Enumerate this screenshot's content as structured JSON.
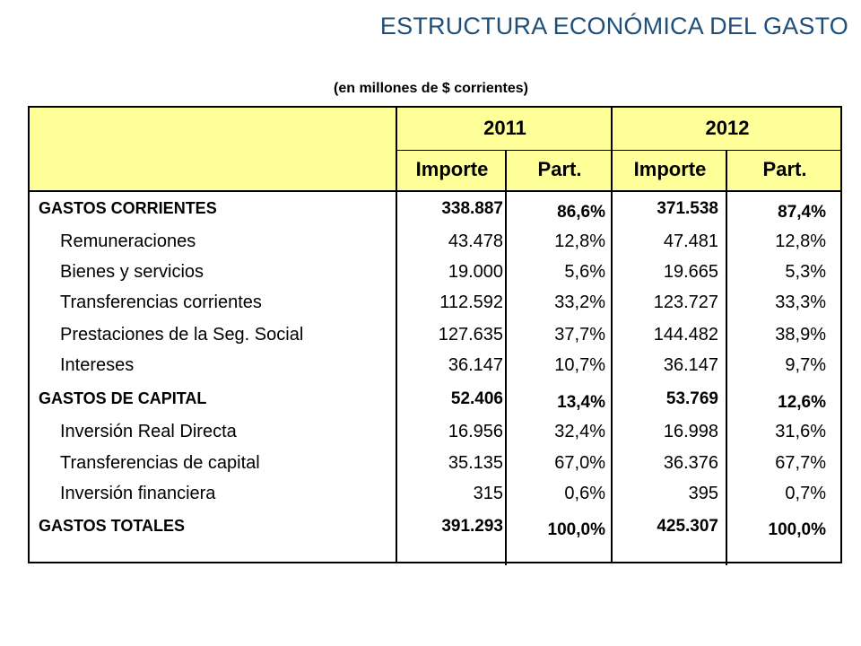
{
  "title": "ESTRUCTURA ECONÓMICA DEL GASTO",
  "subtitle": "(en millones de $ corrientes)",
  "years": [
    "2011",
    "2012"
  ],
  "subheaders": [
    "Importe",
    "Part.",
    "Importe",
    "Part."
  ],
  "rows": [
    {
      "label": "GASTOS CORRIENTES",
      "bold": true,
      "v": [
        "338.887",
        "86,6%",
        "371.538",
        "87,4%"
      ]
    },
    {
      "label": "Remuneraciones",
      "bold": false,
      "v": [
        "43.478",
        "12,8%",
        "47.481",
        "12,8%"
      ]
    },
    {
      "label": "Bienes y servicios",
      "bold": false,
      "v": [
        "19.000",
        "5,6%",
        "19.665",
        "5,3%"
      ]
    },
    {
      "label": "Transferencias corrientes",
      "bold": false,
      "v": [
        "112.592",
        "33,2%",
        "123.727",
        "33,3%"
      ]
    },
    {
      "label": "Prestaciones de la Seg. Social",
      "bold": false,
      "v": [
        "127.635",
        "37,7%",
        "144.482",
        "38,9%"
      ]
    },
    {
      "label": "Intereses",
      "bold": false,
      "v": [
        "36.147",
        "10,7%",
        "36.147",
        "9,7%"
      ]
    },
    {
      "label": "GASTOS DE CAPITAL",
      "bold": true,
      "v": [
        "52.406",
        "13,4%",
        "53.769",
        "12,6%"
      ]
    },
    {
      "label": "Inversión Real Directa",
      "bold": false,
      "v": [
        "16.956",
        "32,4%",
        "16.998",
        "31,6%"
      ]
    },
    {
      "label": "Transferencias de capital",
      "bold": false,
      "v": [
        "35.135",
        "67,0%",
        "36.376",
        "67,7%"
      ]
    },
    {
      "label": "Inversión financiera",
      "bold": false,
      "v": [
        "315",
        "0,6%",
        "395",
        "0,7%"
      ]
    },
    {
      "label": "GASTOS TOTALES",
      "bold": true,
      "v": [
        "391.293",
        "100,0%",
        "425.307",
        "100,0%"
      ]
    }
  ]
}
